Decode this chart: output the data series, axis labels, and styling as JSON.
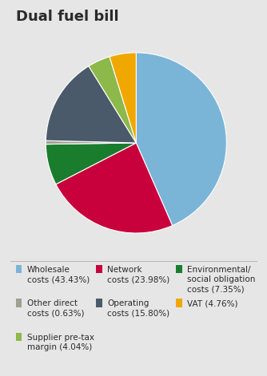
{
  "title": "Dual fuel bill",
  "slices": [
    {
      "label": "Wholesale\ncosts (43.43%)",
      "value": 43.43,
      "color": "#7ab5d8"
    },
    {
      "label": "Network\ncosts (23.98%)",
      "value": 23.98,
      "color": "#c8003c"
    },
    {
      "label": "Environmental/\nsocial obligation\ncosts (7.35%)",
      "value": 7.35,
      "color": "#1a7d2e"
    },
    {
      "label": "Other direct\ncosts (0.63%)",
      "value": 0.63,
      "color": "#a0a090"
    },
    {
      "label": "Operating\ncosts (15.80%)",
      "value": 15.8,
      "color": "#4a5a6a"
    },
    {
      "label": "VAT (4.76%)",
      "value": 4.76,
      "color": "#f0a800"
    },
    {
      "label": "Supplier pre-tax\nmargin (4.04%)",
      "value": 4.04,
      "color": "#8db84a"
    }
  ],
  "background_color": "#e6e6e6",
  "title_fontsize": 13,
  "legend_fontsize": 7.5,
  "legend_items": [
    {
      "label": "Wholesale\ncosts (43.43%)",
      "color": "#7ab5d8"
    },
    {
      "label": "Network\ncosts (23.98%)",
      "color": "#c8003c"
    },
    {
      "label": "Environmental/\nsocial obligation\ncosts (7.35%)",
      "color": "#1a7d2e"
    },
    {
      "label": "Other direct\ncosts (0.63%)",
      "color": "#a0a090"
    },
    {
      "label": "Operating\ncosts (15.80%)",
      "color": "#4a5a6a"
    },
    {
      "label": "VAT (4.76%)",
      "color": "#f0a800"
    },
    {
      "label": "Supplier pre-tax\nmargin (4.04%)",
      "color": "#8db84a"
    }
  ],
  "startangle": 90,
  "pie_order": [
    0,
    1,
    2,
    3,
    4,
    5,
    6
  ]
}
